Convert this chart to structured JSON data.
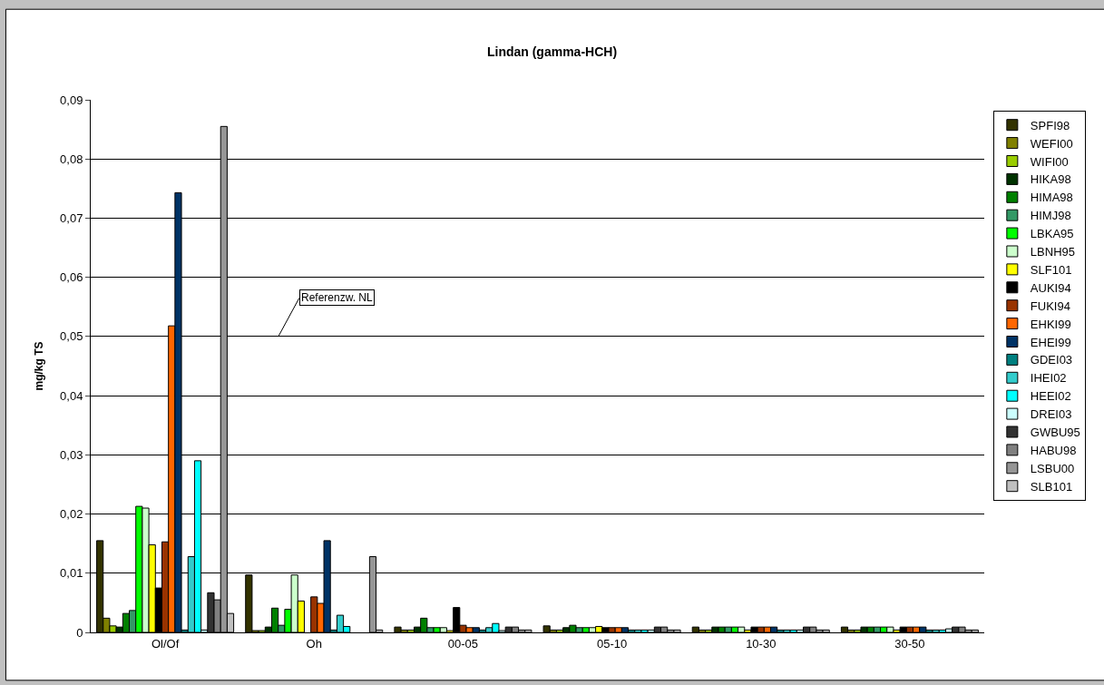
{
  "chart_data": {
    "type": "bar",
    "title": "Lindan (gamma-HCH)",
    "ylabel": "mg/kg TS",
    "categories": [
      "Ol/Of",
      "Oh",
      "00-05",
      "05-10",
      "10-30",
      "30-50"
    ],
    "series": [
      {
        "name": "SPFI98",
        "color": "#333300",
        "values": [
          0.0155,
          0.0097,
          0.0009,
          0.0011,
          0.0009,
          0.0009
        ]
      },
      {
        "name": "WEFI00",
        "color": "#808000",
        "values": [
          0.0024,
          0.0003,
          0.0004,
          0.0004,
          0.0004,
          0.0004
        ]
      },
      {
        "name": "WIFI00",
        "color": "#99cc00",
        "values": [
          0.0011,
          0.0003,
          0.0004,
          0.0004,
          0.0004,
          0.0004
        ]
      },
      {
        "name": "HIKA98",
        "color": "#003300",
        "values": [
          0.0009,
          0.0009,
          0.0009,
          0.0008,
          0.0009,
          0.0009
        ]
      },
      {
        "name": "HIMA98",
        "color": "#008000",
        "values": [
          0.0032,
          0.0041,
          0.0024,
          0.0012,
          0.0009,
          0.0009
        ]
      },
      {
        "name": "HIMJ98",
        "color": "#339966",
        "values": [
          0.0037,
          0.0012,
          0.0008,
          0.0008,
          0.0009,
          0.0009
        ]
      },
      {
        "name": "LBKA95",
        "color": "#00ff00",
        "values": [
          0.0213,
          0.0039,
          0.0008,
          0.0008,
          0.0009,
          0.0009
        ]
      },
      {
        "name": "LBNH95",
        "color": "#ccffcc",
        "values": [
          0.021,
          0.0097,
          0.0008,
          0.0008,
          0.0009,
          0.0009
        ]
      },
      {
        "name": "SLF101",
        "color": "#ffff00",
        "values": [
          0.0148,
          0.0053,
          0.0003,
          0.001,
          0.0004,
          0.0004
        ]
      },
      {
        "name": "AUKI94",
        "color": "#000000",
        "values": [
          0.0075,
          null,
          0.0042,
          0.0008,
          0.0009,
          0.0009
        ]
      },
      {
        "name": "FUKI94",
        "color": "#993300",
        "values": [
          0.0153,
          0.006,
          0.0012,
          0.0008,
          0.0009,
          0.0009
        ]
      },
      {
        "name": "EHKI99",
        "color": "#ff6600",
        "values": [
          0.0518,
          0.0049,
          0.0008,
          0.0008,
          0.0009,
          0.0009
        ]
      },
      {
        "name": "EHEI99",
        "color": "#003366",
        "values": [
          0.0743,
          0.0155,
          0.0008,
          0.0008,
          0.0009,
          0.0009
        ]
      },
      {
        "name": "GDEI03",
        "color": "#008080",
        "values": [
          0.0004,
          0.0004,
          0.0004,
          0.0004,
          0.0004,
          0.0004
        ]
      },
      {
        "name": "IHEI02",
        "color": "#33cccc",
        "values": [
          0.0128,
          0.0029,
          0.0008,
          0.0004,
          0.0004,
          0.0004
        ]
      },
      {
        "name": "HEEI02",
        "color": "#00ffff",
        "values": [
          0.029,
          0.001,
          0.0015,
          0.0004,
          0.0004,
          0.0004
        ]
      },
      {
        "name": "DREI03",
        "color": "#ccffff",
        "values": [
          0.0004,
          null,
          0.0003,
          0.0004,
          0.0004,
          0.0006
        ]
      },
      {
        "name": "GWBU95",
        "color": "#333333",
        "values": [
          0.0067,
          null,
          0.0009,
          0.0009,
          0.0009,
          0.0009
        ]
      },
      {
        "name": "HABU98",
        "color": "#808080",
        "values": [
          0.0055,
          null,
          0.0009,
          0.0009,
          0.0009,
          0.0009
        ]
      },
      {
        "name": "LSBU00",
        "color": "#969696",
        "values": [
          0.0855,
          0.0128,
          0.0004,
          0.0004,
          0.0004,
          0.0004
        ]
      },
      {
        "name": "SLB101",
        "color": "#c0c0c0",
        "values": [
          0.0032,
          0.0004,
          0.0004,
          0.0004,
          0.0004,
          0.0004
        ]
      }
    ],
    "ylim": [
      0,
      0.09
    ],
    "yticks": [
      {
        "value": 0,
        "label": "0"
      },
      {
        "value": 0.01,
        "label": "0,01"
      },
      {
        "value": 0.02,
        "label": "0,02"
      },
      {
        "value": 0.03,
        "label": "0,03"
      },
      {
        "value": 0.04,
        "label": "0,04"
      },
      {
        "value": 0.05,
        "label": "0,05"
      },
      {
        "value": 0.06,
        "label": "0,06"
      },
      {
        "value": 0.07,
        "label": "0,07"
      },
      {
        "value": 0.08,
        "label": "0,08"
      },
      {
        "value": 0.09,
        "label": "0,09"
      }
    ],
    "grid": "y",
    "legend": "right",
    "annotations": [
      "Referenzw. NL"
    ]
  }
}
